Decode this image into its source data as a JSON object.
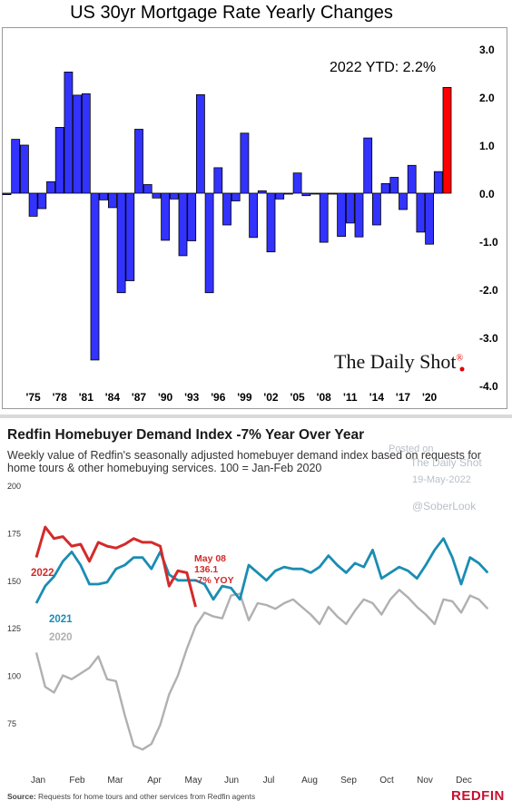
{
  "chart_data": [
    {
      "type": "bar",
      "title": "US 30yr Mortgage Rate Yearly Changes",
      "annotation": "2022 YTD:  2.2%",
      "source_logo": "The Daily Shot",
      "x_tick_labels": [
        "'75",
        "'78",
        "'81",
        "'84",
        "'87",
        "'90",
        "'93",
        "'96",
        "'99",
        "'02",
        "'05",
        "'08",
        "'11",
        "'14",
        "'17",
        "'20"
      ],
      "y_tick_labels": [
        "3.0",
        "2.0",
        "1.0",
        "0.0",
        "-1.0",
        "-2.0",
        "-3.0",
        "-4.0"
      ],
      "ylim": [
        -4,
        3
      ],
      "x": [
        1972,
        1973,
        1974,
        1975,
        1976,
        1977,
        1978,
        1979,
        1980,
        1981,
        1982,
        1983,
        1984,
        1985,
        1986,
        1987,
        1988,
        1989,
        1990,
        1991,
        1992,
        1993,
        1994,
        1995,
        1996,
        1997,
        1998,
        1999,
        2000,
        2001,
        2002,
        2003,
        2004,
        2005,
        2006,
        2007,
        2008,
        2009,
        2010,
        2011,
        2012,
        2013,
        2014,
        2015,
        2016,
        2017,
        2018,
        2019,
        2020,
        2021,
        2022
      ],
      "values": [
        -0.03,
        1.12,
        1.0,
        -0.48,
        -0.32,
        0.24,
        1.37,
        2.52,
        2.04,
        2.07,
        -3.47,
        -0.14,
        -0.3,
        -2.07,
        -1.82,
        1.33,
        0.18,
        -0.1,
        -0.98,
        -0.12,
        -1.3,
        -0.99,
        2.05,
        -2.07,
        0.53,
        -0.66,
        -0.16,
        1.25,
        -0.92,
        0.05,
        -1.22,
        -0.12,
        0.0,
        0.42,
        -0.05,
        0.0,
        -1.02,
        0.0,
        -0.9,
        -0.62,
        -0.91,
        1.15,
        -0.66,
        0.2,
        0.33,
        -0.34,
        0.58,
        -0.81,
        -1.06,
        0.45,
        2.2
      ],
      "bar_color": "#3333ff",
      "highlight_color": "#ff0000",
      "highlight_index": 50,
      "grid": false,
      "legend": "none"
    },
    {
      "type": "line",
      "title": "Redfin Homebuyer Demand Index -7% Year Over Year",
      "subtitle": "Weekly value of Redfin's seasonally adjusted homebuyer demand index based on requests for home tours & other homebuying services. 100 = Jan-Feb 2020",
      "x_tick_labels": [
        "Jan",
        "Feb",
        "Mar",
        "Apr",
        "May",
        "Jun",
        "Jul",
        "Aug",
        "Sep",
        "Oct",
        "Nov",
        "Dec"
      ],
      "y_tick_labels": [
        "200",
        "175",
        "150",
        "125",
        "100",
        "75"
      ],
      "ylim": [
        55,
        200
      ],
      "annotation_lines": [
        "May 08",
        "136.1",
        "-7% YOY"
      ],
      "source": "Source:",
      "source_text": " Requests for home tours and other services from Redfin agents",
      "brand": "REDFIN",
      "watermark": [
        "Posted on",
        "The Daily Shot",
        "19-May-2022",
        "@SoberLook"
      ],
      "legend": "inline labels near series",
      "series": [
        {
          "name": "2022",
          "color": "#d42a2a",
          "x": [
            1,
            2,
            3,
            4,
            5,
            6,
            7,
            8,
            9,
            10,
            11,
            12,
            13,
            14,
            15,
            16,
            17,
            18,
            19
          ],
          "values": [
            162,
            178,
            172,
            173,
            168,
            169,
            160,
            170,
            168,
            167,
            169,
            172,
            170,
            170,
            168,
            147,
            155,
            154,
            136
          ]
        },
        {
          "name": "2021",
          "color": "#1a8db3",
          "x": [
            1,
            2,
            3,
            4,
            5,
            6,
            7,
            8,
            9,
            10,
            11,
            12,
            13,
            14,
            15,
            16,
            17,
            18,
            19,
            20,
            21,
            22,
            23,
            24,
            25,
            26,
            27,
            28,
            29,
            30,
            31,
            32,
            33,
            34,
            35,
            36,
            37,
            38,
            39,
            40,
            41,
            42,
            43,
            44,
            45,
            46,
            47,
            48,
            49,
            50,
            51,
            52
          ],
          "values": [
            138,
            147,
            152,
            160,
            165,
            158,
            148,
            148,
            149,
            156,
            158,
            162,
            162,
            156,
            165,
            153,
            150,
            150,
            150,
            148,
            140,
            147,
            146,
            140,
            158,
            154,
            150,
            155,
            157,
            156,
            156,
            154,
            157,
            163,
            158,
            154,
            159,
            157,
            166,
            151,
            154,
            157,
            155,
            151,
            158,
            166,
            172,
            162,
            148,
            162,
            159,
            154
          ]
        },
        {
          "name": "2020",
          "color": "#b0b0b0",
          "x": [
            1,
            2,
            3,
            4,
            5,
            6,
            7,
            8,
            9,
            10,
            11,
            12,
            13,
            14,
            15,
            16,
            17,
            18,
            19,
            20,
            21,
            22,
            23,
            24,
            25,
            26,
            27,
            28,
            29,
            30,
            31,
            32,
            33,
            34,
            35,
            36,
            37,
            38,
            39,
            40,
            41,
            42,
            43,
            44,
            45,
            46,
            47,
            48,
            49,
            50,
            51,
            52
          ],
          "values": [
            112,
            94,
            91,
            100,
            98,
            101,
            104,
            110,
            98,
            97,
            79,
            63,
            61,
            64,
            74,
            90,
            100,
            114,
            126,
            133,
            131,
            130,
            142,
            143,
            129,
            138,
            137,
            135,
            138,
            140,
            136,
            132,
            127,
            136,
            131,
            127,
            134,
            140,
            138,
            132,
            140,
            145,
            141,
            136,
            132,
            127,
            140,
            139,
            133,
            142,
            140,
            135
          ]
        }
      ],
      "grid": false
    }
  ]
}
